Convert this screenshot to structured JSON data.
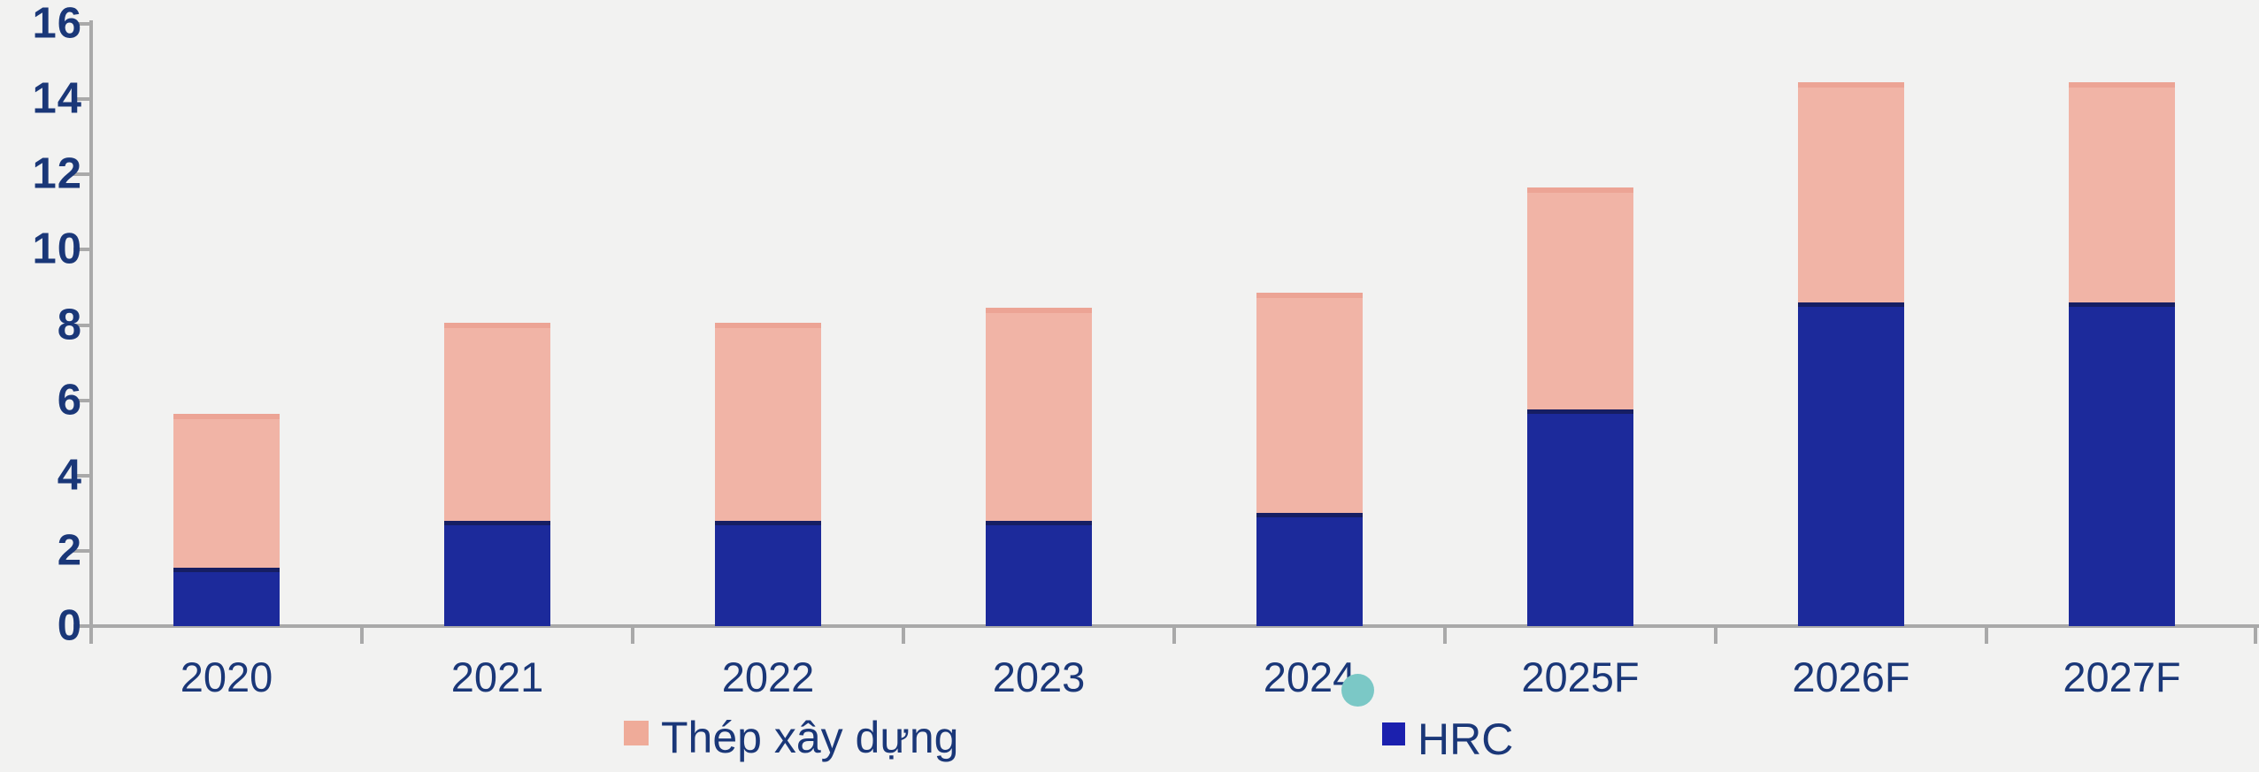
{
  "chart_data": {
    "type": "bar",
    "stacked": true,
    "title": "",
    "xlabel": "",
    "ylabel": "",
    "categories": [
      "2020",
      "2021",
      "2022",
      "2023",
      "2024",
      "2025F",
      "2026F",
      "2027F"
    ],
    "series": [
      {
        "name": "Thép xây dựng",
        "color": "#f1b4a6",
        "edge_color": "#eca495",
        "values": [
          4.1,
          5.25,
          5.25,
          5.65,
          5.85,
          5.9,
          5.85,
          5.85
        ]
      },
      {
        "name": "HRC",
        "color": "#1c2a9b",
        "edge_color": "#161e63",
        "values": [
          1.55,
          2.8,
          2.8,
          2.8,
          3.0,
          5.75,
          8.6,
          8.6
        ]
      }
    ],
    "stack_bottom_series": "HRC",
    "totals": [
      5.65,
      8.05,
      8.05,
      8.45,
      8.85,
      11.65,
      14.45,
      14.45
    ],
    "ylim": [
      0,
      16
    ],
    "ytick_step": 2,
    "ytick_labels": [
      "0",
      "2",
      "4",
      "6",
      "8",
      "10",
      "12",
      "14",
      "16"
    ],
    "grid": false,
    "legend_position": "bottom"
  },
  "legend": {
    "items": [
      {
        "label": "Thép xây dựng",
        "swatch_color": "#efab99"
      },
      {
        "label": "HRC",
        "swatch_color": "#1b20ae"
      }
    ]
  },
  "annotations": {
    "teal_dot": {
      "color": "#7bc8c6",
      "near_label": "2024"
    }
  },
  "colors": {
    "background": "#f2f2f1",
    "axis": "#a9a9a9",
    "text": "#1a3778"
  }
}
